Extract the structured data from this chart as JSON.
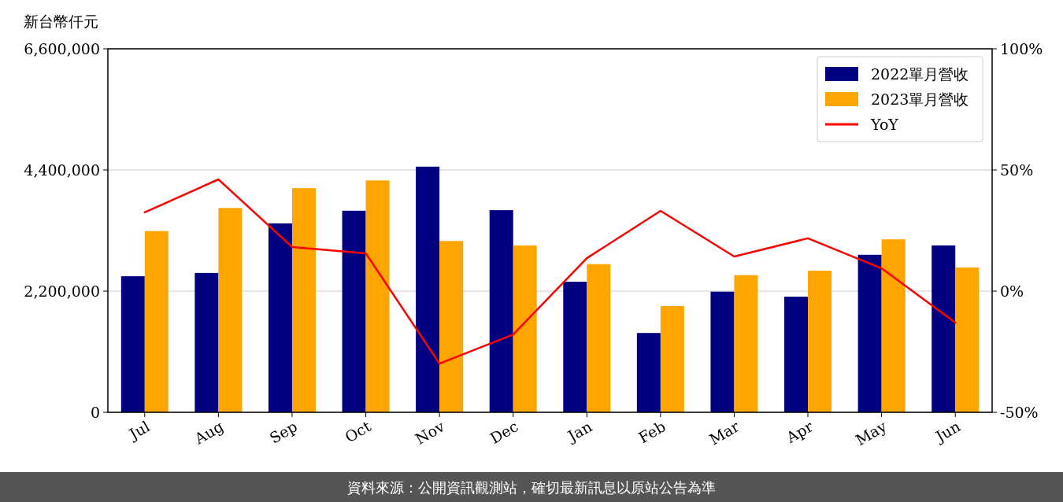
{
  "chart_data": {
    "type": "bar",
    "ylabel": "新台幣仟元",
    "categories": [
      "Jul",
      "Aug",
      "Sep",
      "Oct",
      "Nov",
      "Dec",
      "Jan",
      "Feb",
      "Mar",
      "Apr",
      "May",
      "Jun"
    ],
    "ylim": [
      0,
      6600000
    ],
    "yticks": [
      {
        "value": 0,
        "label": "0"
      },
      {
        "value": 2200000,
        "label": "2,200,000"
      },
      {
        "value": 4400000,
        "label": "4,400,000"
      },
      {
        "value": 6600000,
        "label": "6,600,000"
      }
    ],
    "y2lim": [
      -50,
      100
    ],
    "y2ticks": [
      {
        "value": -50,
        "label": "-50%"
      },
      {
        "value": 0,
        "label": "0%"
      },
      {
        "value": 50,
        "label": "50%"
      },
      {
        "value": 100,
        "label": "100%"
      }
    ],
    "grid": "y",
    "legend": "top right",
    "annotations": [
      "資料來源：公開資訊觀測站，確切最新訊息以原站公告為準"
    ],
    "series": [
      {
        "name": "2022單月營收",
        "color": "#000080",
        "values": [
          2470000,
          2530000,
          3430000,
          3660000,
          4460000,
          3670000,
          2370000,
          1440000,
          2190000,
          2100000,
          2860000,
          3030000
        ]
      },
      {
        "name": "2023單月營收",
        "color": "#ffa500",
        "values": [
          3290000,
          3710000,
          4070000,
          4210000,
          3110000,
          3030000,
          2690000,
          1930000,
          2490000,
          2570000,
          3140000,
          2630000
        ]
      },
      {
        "name": "YoY",
        "type": "line",
        "axis": "y2",
        "color": "#ff0000",
        "values": [
          32.5,
          46.1,
          18.2,
          15.6,
          -29.9,
          -17.9,
          13.6,
          33.1,
          14.3,
          21.8,
          9.4,
          -13.0
        ]
      }
    ]
  }
}
